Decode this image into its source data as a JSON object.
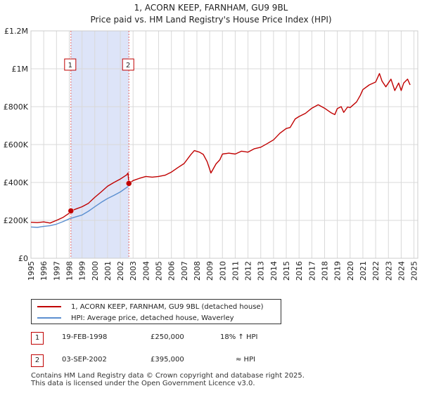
{
  "chart_data": {
    "type": "line",
    "title": "1, ACORN KEEP, FARNHAM, GU9 9BL",
    "subtitle": "Price paid vs. HM Land Registry's House Price Index (HPI)",
    "x_ticks": [
      "1995",
      "1996",
      "1997",
      "1998",
      "1999",
      "2000",
      "2001",
      "2002",
      "2003",
      "2004",
      "2005",
      "2006",
      "2007",
      "2008",
      "2009",
      "2010",
      "2011",
      "2012",
      "2013",
      "2014",
      "2015",
      "2016",
      "2017",
      "2018",
      "2019",
      "2020",
      "2021",
      "2022",
      "2023",
      "2024",
      "2025"
    ],
    "xlim": [
      1995,
      2025.3
    ],
    "y_ticks": [
      {
        "value": 0,
        "label": "£0"
      },
      {
        "value": 200000,
        "label": "£200K"
      },
      {
        "value": 400000,
        "label": "£400K"
      },
      {
        "value": 600000,
        "label": "£600K"
      },
      {
        "value": 800000,
        "label": "£800K"
      },
      {
        "value": 1000000,
        "label": "£1M"
      },
      {
        "value": 1200000,
        "label": "£1.2M"
      }
    ],
    "ylim": [
      0,
      1200000
    ],
    "grid": true,
    "shaded_region": {
      "x0": 1998.13,
      "x1": 2002.67,
      "color": "#dde4f8"
    },
    "series": [
      {
        "name": "1, ACORN KEEP, FARNHAM, GU9 9BL (detached house)",
        "color": "#c00000",
        "points": [
          [
            1995.0,
            190000
          ],
          [
            1995.5,
            188000
          ],
          [
            1996.0,
            192000
          ],
          [
            1996.5,
            186000
          ],
          [
            1997.0,
            200000
          ],
          [
            1997.5,
            215000
          ],
          [
            1998.0,
            238000
          ],
          [
            1998.13,
            250000
          ],
          [
            1998.6,
            262000
          ],
          [
            1999.0,
            272000
          ],
          [
            1999.5,
            290000
          ],
          [
            2000.0,
            322000
          ],
          [
            2000.5,
            350000
          ],
          [
            2001.0,
            380000
          ],
          [
            2001.5,
            400000
          ],
          [
            2002.0,
            418000
          ],
          [
            2002.5,
            440000
          ],
          [
            2002.6,
            450000
          ],
          [
            2002.67,
            395000
          ],
          [
            2003.0,
            410000
          ],
          [
            2003.5,
            422000
          ],
          [
            2004.0,
            432000
          ],
          [
            2004.5,
            428000
          ],
          [
            2005.0,
            432000
          ],
          [
            2005.5,
            438000
          ],
          [
            2006.0,
            455000
          ],
          [
            2006.5,
            478000
          ],
          [
            2007.0,
            500000
          ],
          [
            2007.5,
            545000
          ],
          [
            2007.8,
            568000
          ],
          [
            2008.2,
            560000
          ],
          [
            2008.5,
            548000
          ],
          [
            2008.8,
            510000
          ],
          [
            2009.1,
            450000
          ],
          [
            2009.5,
            498000
          ],
          [
            2009.8,
            520000
          ],
          [
            2010.0,
            550000
          ],
          [
            2010.5,
            555000
          ],
          [
            2011.0,
            550000
          ],
          [
            2011.5,
            565000
          ],
          [
            2012.0,
            560000
          ],
          [
            2012.5,
            578000
          ],
          [
            2013.0,
            586000
          ],
          [
            2013.5,
            605000
          ],
          [
            2014.0,
            625000
          ],
          [
            2014.5,
            660000
          ],
          [
            2015.0,
            685000
          ],
          [
            2015.3,
            690000
          ],
          [
            2015.7,
            735000
          ],
          [
            2016.0,
            748000
          ],
          [
            2016.5,
            765000
          ],
          [
            2017.0,
            792000
          ],
          [
            2017.5,
            810000
          ],
          [
            2018.0,
            792000
          ],
          [
            2018.5,
            768000
          ],
          [
            2018.8,
            758000
          ],
          [
            2019.0,
            790000
          ],
          [
            2019.3,
            800000
          ],
          [
            2019.5,
            770000
          ],
          [
            2019.8,
            798000
          ],
          [
            2020.0,
            795000
          ],
          [
            2020.5,
            825000
          ],
          [
            2020.8,
            860000
          ],
          [
            2021.0,
            890000
          ],
          [
            2021.5,
            915000
          ],
          [
            2022.0,
            930000
          ],
          [
            2022.3,
            975000
          ],
          [
            2022.5,
            935000
          ],
          [
            2022.8,
            905000
          ],
          [
            2023.2,
            945000
          ],
          [
            2023.5,
            885000
          ],
          [
            2023.8,
            925000
          ],
          [
            2024.0,
            885000
          ],
          [
            2024.2,
            925000
          ],
          [
            2024.5,
            945000
          ],
          [
            2024.7,
            915000
          ]
        ]
      },
      {
        "name": "HPI: Average price, detached house, Waverley",
        "color": "#5b8fd0",
        "points": [
          [
            1995.0,
            165000
          ],
          [
            1995.5,
            163000
          ],
          [
            1996.0,
            168000
          ],
          [
            1996.5,
            172000
          ],
          [
            1997.0,
            180000
          ],
          [
            1997.5,
            193000
          ],
          [
            1998.0,
            208000
          ],
          [
            1998.5,
            218000
          ],
          [
            1999.0,
            228000
          ],
          [
            1999.5,
            248000
          ],
          [
            2000.0,
            272000
          ],
          [
            2000.5,
            295000
          ],
          [
            2001.0,
            315000
          ],
          [
            2001.5,
            332000
          ],
          [
            2002.0,
            350000
          ],
          [
            2002.67,
            382000
          ]
        ]
      }
    ],
    "markers": [
      {
        "label": "1",
        "x": 1998.13,
        "y": 250000,
        "date": "19-FEB-1998",
        "price": "£250,000",
        "hpi": "18% ↑ HPI"
      },
      {
        "label": "2",
        "x": 2002.67,
        "y": 395000,
        "date": "03-SEP-2002",
        "price": "£395,000",
        "hpi": "≈ HPI"
      }
    ]
  },
  "legend": {
    "items": [
      {
        "label": "1, ACORN KEEP, FARNHAM, GU9 9BL (detached house)",
        "color": "#c00000"
      },
      {
        "label": "HPI: Average price, detached house, Waverley",
        "color": "#5b8fd0"
      }
    ]
  },
  "transactions": [
    {
      "num": "1",
      "date": "19-FEB-1998",
      "price": "£250,000",
      "hpi": "18% ↑ HPI"
    },
    {
      "num": "2",
      "date": "03-SEP-2002",
      "price": "£395,000",
      "hpi": "≈ HPI"
    }
  ],
  "footer": {
    "line1": "Contains HM Land Registry data © Crown copyright and database right 2025.",
    "line2": "This data is licensed under the Open Government Licence v3.0."
  }
}
